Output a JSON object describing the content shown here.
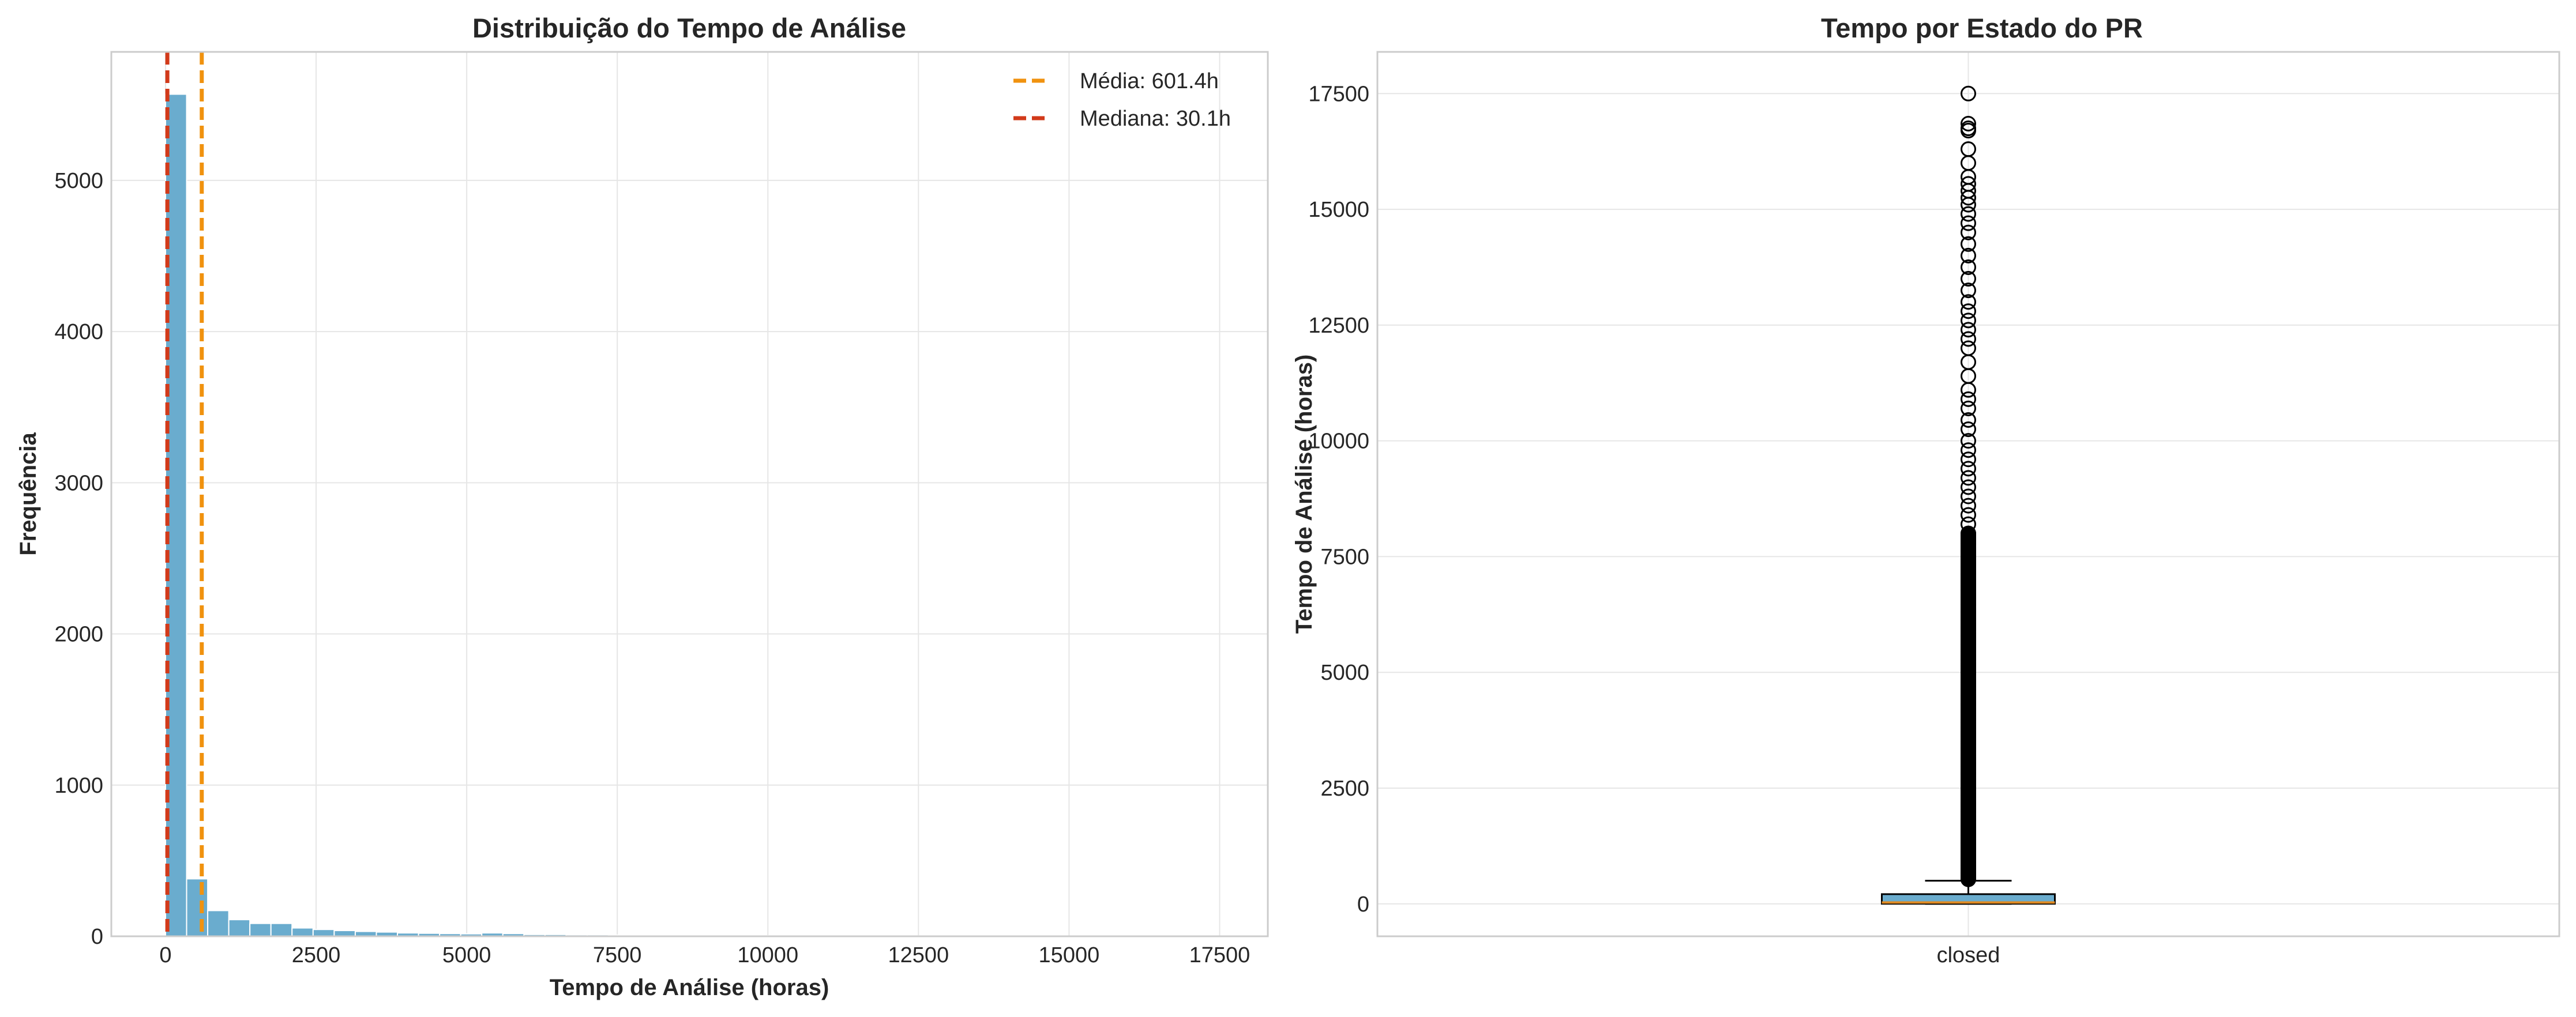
{
  "colors": {
    "bar": "#6aacce",
    "bar_edge": "#ffffff",
    "mean_line": "#f0920f",
    "median_line": "#d23a1a",
    "grid": "#e6e6e6",
    "axes_edge": "#cccccc",
    "box_fill": "#6aacce",
    "box_median": "#e08a22",
    "flier": "#000000"
  },
  "chart_data": [
    {
      "type": "bar",
      "title": "Distribuição do Tempo de Análise",
      "xlabel": "Tempo de Análise (horas)",
      "ylabel": "Frequência",
      "xlim": [
        -900,
        18300
      ],
      "ylim": [
        0,
        5850
      ],
      "xticks": [
        0,
        2500,
        5000,
        7500,
        10000,
        12500,
        15000,
        17500
      ],
      "xtick_labels": [
        "0",
        "2500",
        "5000",
        "7500",
        "10000",
        "12500",
        "15000",
        "17500"
      ],
      "yticks": [
        0,
        1000,
        2000,
        3000,
        4000,
        5000
      ],
      "ytick_labels": [
        "0",
        "1000",
        "2000",
        "3000",
        "4000",
        "5000"
      ],
      "grid": true,
      "bin_width": 350,
      "bin_start": 0,
      "values": [
        5570,
        380,
        170,
        110,
        85,
        85,
        55,
        45,
        38,
        32,
        28,
        22,
        20,
        18,
        16,
        22,
        18,
        12,
        12,
        10,
        10,
        8,
        8,
        7,
        6,
        6,
        5,
        5,
        4,
        4,
        4,
        4,
        3,
        3,
        3,
        3,
        2,
        2,
        2,
        2,
        2,
        2,
        2,
        1,
        1,
        1,
        1,
        1,
        1,
        1
      ],
      "annotations": [
        {
          "label": "Média: 601.4h",
          "value": 601.4,
          "style": "dashed",
          "color": "mean_line"
        },
        {
          "label": "Mediana: 30.1h",
          "value": 30.1,
          "style": "dashed",
          "color": "median_line"
        }
      ],
      "legend": {
        "placement": "top-right",
        "entries": [
          "Média: 601.4h",
          "Mediana: 30.1h"
        ]
      }
    },
    {
      "type": "box",
      "title": "Tempo por Estado do PR",
      "xlabel": "",
      "ylabel": "Tempo de Análise (horas)",
      "categories": [
        "closed"
      ],
      "ylim": [
        -700,
        18400
      ],
      "yticks": [
        0,
        2500,
        5000,
        7500,
        10000,
        12500,
        15000,
        17500
      ],
      "ytick_labels": [
        "0",
        "2500",
        "5000",
        "7500",
        "10000",
        "12500",
        "15000",
        "17500"
      ],
      "grid": true,
      "box": {
        "whisker_low": 0,
        "q1": 3,
        "median": 30.1,
        "q3": 210,
        "whisker_high": 500
      },
      "fliers_sample": [
        17500,
        16850,
        16750,
        16700,
        16300,
        16000,
        15700,
        15550,
        15400,
        15250,
        15100,
        14900,
        14700,
        14500,
        14250,
        14000,
        13750,
        13500,
        13250,
        13000,
        12800,
        12600,
        12400,
        12200,
        12000,
        11700,
        11400,
        11100,
        10900,
        10700,
        10450,
        10250,
        10000,
        9800,
        9600,
        9400,
        9200,
        9000,
        8800,
        8600,
        8400,
        8200,
        8000
      ]
    }
  ]
}
